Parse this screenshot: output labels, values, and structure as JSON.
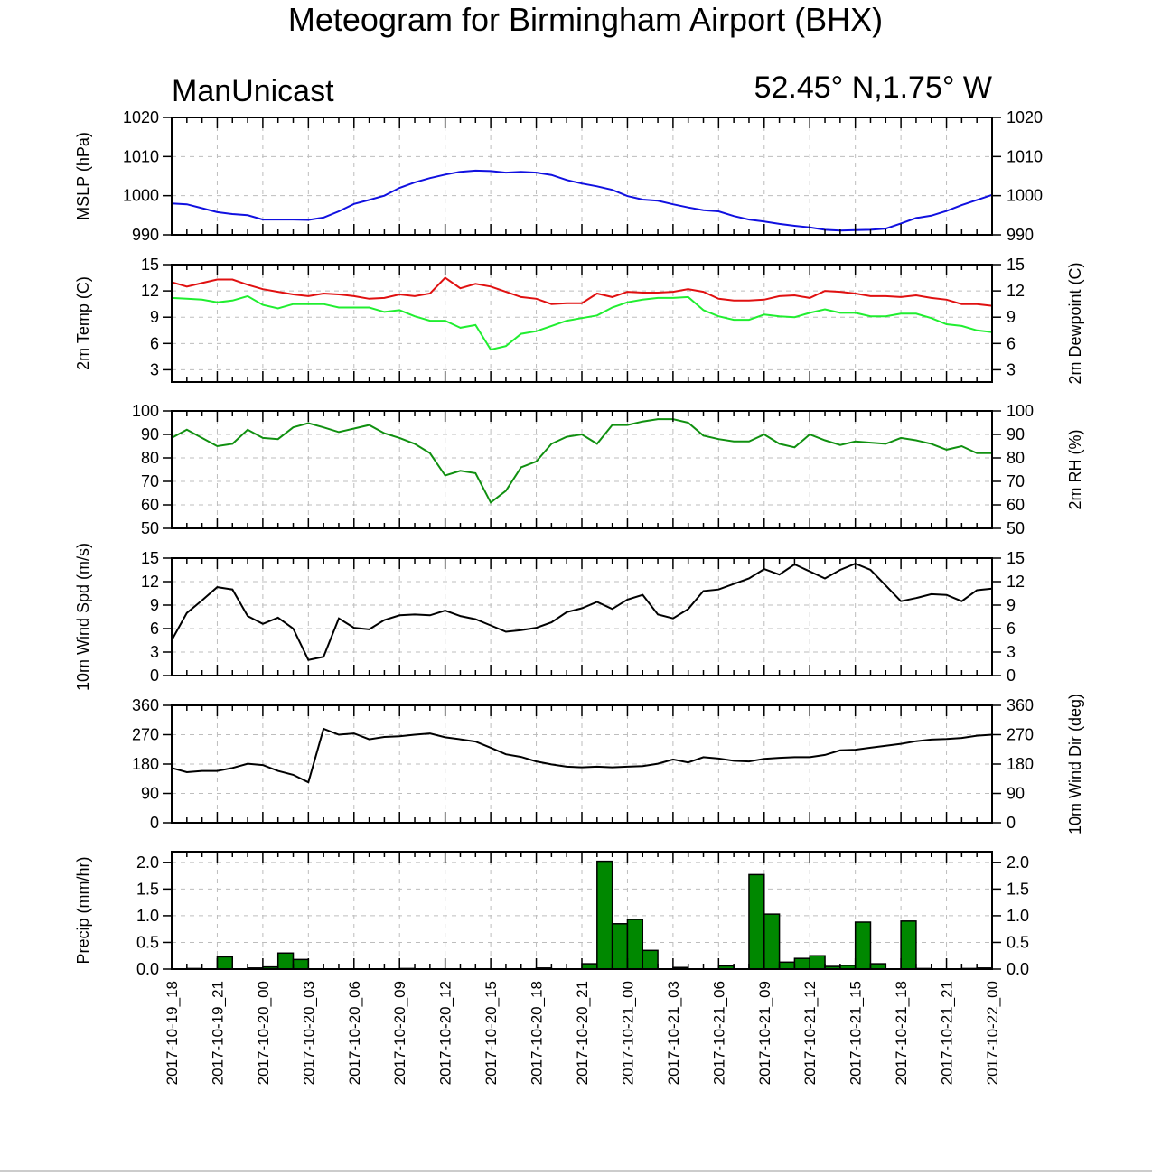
{
  "page": {
    "title": "Meteogram for Birmingham Airport (BHX)",
    "left_subtitle": "ManUnicast",
    "right_subtitle": "52.45° N,1.75° W"
  },
  "chart_data": {
    "type": "meteogram",
    "x_hours": [
      0,
      1,
      2,
      3,
      4,
      5,
      6,
      7,
      8,
      9,
      10,
      11,
      12,
      13,
      14,
      15,
      16,
      17,
      18,
      19,
      20,
      21,
      22,
      23,
      24,
      25,
      26,
      27,
      28,
      29,
      30,
      31,
      32,
      33,
      34,
      35,
      36,
      37,
      38,
      39,
      40,
      41,
      42,
      43,
      44,
      45,
      46,
      47,
      48,
      49,
      50,
      51,
      52,
      53,
      54
    ],
    "x_tick_labels": [
      "2017-10-19_18",
      "2017-10-19_21",
      "2017-10-20_00",
      "2017-10-20_03",
      "2017-10-20_06",
      "2017-10-20_09",
      "2017-10-20_12",
      "2017-10-20_15",
      "2017-10-20_18",
      "2017-10-20_21",
      "2017-10-21_00",
      "2017-10-21_03",
      "2017-10-21_06",
      "2017-10-21_09",
      "2017-10-21_12",
      "2017-10-21_15",
      "2017-10-21_18",
      "2017-10-21_21",
      "2017-10-22_00"
    ],
    "x_range": [
      "2017-10-19_18",
      "2017-10-22_00"
    ],
    "grid": true,
    "panels": [
      {
        "id": "mslp",
        "left_label": "MSLP (hPa)",
        "right_label": "",
        "ylim": [
          990,
          1020
        ],
        "yticks": [
          990,
          1000,
          1010,
          1020
        ],
        "right_ticks": true,
        "series": [
          {
            "color": "#1010e0",
            "values": [
              998,
              997.8,
              996.8,
              995.8,
              995.3,
              995,
              993.9,
              993.9,
              993.9,
              993.8,
              994.4,
              996,
              997.9,
              998.9,
              1000,
              1002,
              1003.4,
              1004.5,
              1005.4,
              1006.1,
              1006.4,
              1006.3,
              1005.9,
              1006.1,
              1005.9,
              1005.3,
              1004,
              1003.1,
              1002.4,
              1001.5,
              999.9,
              999,
              998.7,
              997.8,
              997,
              996.3,
              996,
              994.8,
              993.9,
              993.4,
              992.8,
              992.3,
              991.9,
              991.3,
              991.1,
              991.2,
              991.3,
              991.6,
              992.9,
              994.3,
              994.9,
              996.1,
              997.6,
              998.9,
              1000.2
            ]
          }
        ]
      },
      {
        "id": "temp",
        "left_label": "2m Temp (C)",
        "right_label": "2m Dewpoint (C)",
        "ylim": [
          1.6,
          15
        ],
        "yticks": [
          3,
          6,
          9,
          12,
          15
        ],
        "right_ticks": true,
        "series": [
          {
            "color": "#e01010",
            "values": [
              13,
              12.5,
              12.9,
              13.3,
              13.3,
              12.7,
              12.2,
              11.9,
              11.6,
              11.4,
              11.7,
              11.6,
              11.4,
              11.1,
              11.2,
              11.6,
              11.4,
              11.7,
              13.5,
              12.3,
              12.8,
              12.5,
              11.9,
              11.3,
              11.1,
              10.5,
              10.6,
              10.6,
              11.7,
              11.3,
              11.9,
              11.8,
              11.8,
              11.9,
              12.2,
              11.9,
              11.1,
              10.9,
              10.9,
              11,
              11.4,
              11.5,
              11.2,
              12,
              11.9,
              11.7,
              11.4,
              11.4,
              11.3,
              11.5,
              11.2,
              11,
              10.5,
              10.5,
              10.3
            ]
          },
          {
            "color": "#20ee30",
            "values": [
              11.2,
              11.1,
              11,
              10.7,
              10.9,
              11.4,
              10.4,
              10,
              10.5,
              10.5,
              10.5,
              10.1,
              10.1,
              10.1,
              9.6,
              9.8,
              9.1,
              8.6,
              8.6,
              7.8,
              8.1,
              5.3,
              5.7,
              7.1,
              7.4,
              8,
              8.6,
              8.9,
              9.2,
              10.1,
              10.7,
              11,
              11.2,
              11.2,
              11.3,
              9.8,
              9.1,
              8.7,
              8.7,
              9.3,
              9.1,
              9,
              9.5,
              9.9,
              9.5,
              9.5,
              9.1,
              9.1,
              9.4,
              9.4,
              8.9,
              8.2,
              8,
              7.5,
              7.3
            ]
          }
        ]
      },
      {
        "id": "rh",
        "left_label": "",
        "right_label": "2m RH (%)",
        "ylim": [
          50,
          100
        ],
        "yticks": [
          50,
          60,
          70,
          80,
          90,
          100
        ],
        "right_ticks": true,
        "series": [
          {
            "color": "#109010",
            "values": [
              88.5,
              92,
              88.5,
              85,
              86,
              92,
              88.5,
              88,
              93,
              94.8,
              93,
              91,
              92.5,
              94,
              90.5,
              88.5,
              86,
              82,
              72.5,
              74.5,
              73.5,
              61,
              66,
              76,
              78.5,
              86,
              89,
              90,
              86,
              94,
              94,
              95.5,
              96.5,
              96.5,
              95,
              89.5,
              88,
              87,
              87,
              90,
              86,
              84.5,
              90,
              87.5,
              85.5,
              87,
              86.5,
              86,
              88.5,
              87.5,
              86,
              83.5,
              85,
              82,
              82
            ]
          }
        ]
      },
      {
        "id": "wspd",
        "left_label": "10m Wind Spd (m/s)",
        "right_label": "",
        "ylim": [
          0,
          15
        ],
        "yticks": [
          0,
          3,
          6,
          9,
          12,
          15
        ],
        "right_ticks": true,
        "series": [
          {
            "color": "#000000",
            "values": [
              4.5,
              8,
              9.6,
              11.3,
              11,
              7.6,
              6.6,
              7.4,
              6,
              2,
              2.4,
              7.3,
              6.1,
              5.9,
              7.1,
              7.7,
              7.8,
              7.7,
              8.3,
              7.6,
              7.2,
              6.4,
              5.6,
              5.8,
              6.1,
              6.8,
              8.1,
              8.6,
              9.4,
              8.5,
              9.7,
              10.3,
              7.8,
              7.3,
              8.5,
              10.8,
              11,
              11.7,
              12.4,
              13.6,
              12.9,
              14.2,
              13.3,
              12.4,
              13.5,
              14.3,
              13.5,
              11.5,
              9.5,
              9.9,
              10.4,
              10.3,
              9.5,
              10.9,
              11.1
            ]
          }
        ]
      },
      {
        "id": "wdir",
        "left_label": "",
        "right_label": "10m Wind Dir (deg)",
        "ylim": [
          0,
          360
        ],
        "yticks": [
          0,
          90,
          180,
          270,
          360
        ],
        "right_ticks": true,
        "series": [
          {
            "color": "#000000",
            "values": [
              168,
              155,
              159,
              159,
              168,
              181,
              177,
              159,
              147,
              124,
              288,
              270,
              274,
              256,
              263,
              265,
              270,
              274,
              262,
              256,
              249,
              230,
              210,
              202,
              188,
              179,
              172,
              170,
              172,
              170,
              172,
              174,
              181,
              194,
              185,
              201,
              197,
              190,
              188,
              196,
              199,
              201,
              201,
              208,
              222,
              224,
              230,
              236,
              242,
              250,
              255,
              257,
              260,
              267,
              270
            ]
          }
        ]
      },
      {
        "id": "precip",
        "left_label": "Precip (mm/hr)",
        "right_label": "",
        "ylim": [
          0,
          2.2
        ],
        "yticks": [
          0.0,
          0.5,
          1.0,
          1.5,
          2.0
        ],
        "ytick_labels": [
          "0.0",
          "0.5",
          "1.0",
          "1.5",
          "2.0"
        ],
        "right_ticks": true,
        "bars": {
          "color": "#008800",
          "values": [
            0,
            0.01,
            0,
            0.23,
            0,
            0.02,
            0.04,
            0.3,
            0.18,
            0,
            0,
            0,
            0,
            0,
            0,
            0.01,
            0,
            0,
            0,
            0,
            0,
            0,
            0,
            0,
            0.02,
            0,
            0,
            0.1,
            2.02,
            0.85,
            0.93,
            0.35,
            0,
            0.03,
            0,
            0,
            0.06,
            0,
            1.77,
            1.03,
            0.13,
            0.2,
            0.25,
            0.05,
            0.07,
            0.88,
            0.1,
            0,
            0.9,
            0.01,
            0,
            0,
            0.01,
            0.02,
            0
          ]
        }
      }
    ]
  }
}
